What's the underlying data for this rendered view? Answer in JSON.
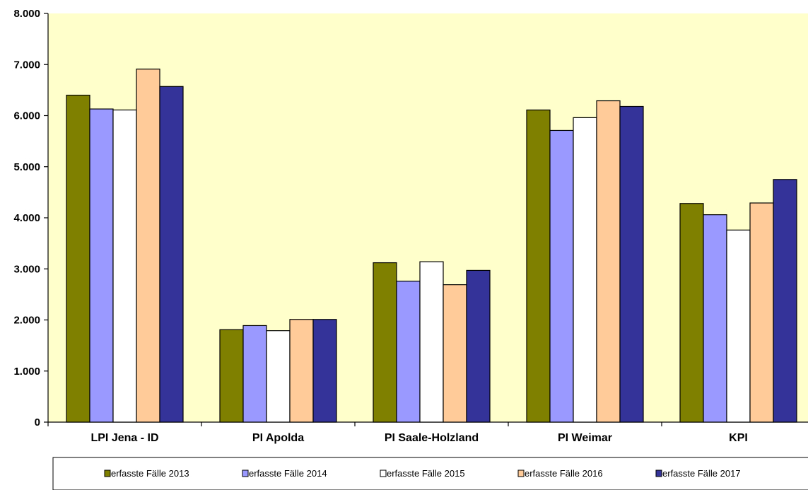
{
  "chart_data": {
    "type": "bar",
    "title": "",
    "xlabel": "",
    "ylabel": "",
    "ylim": [
      0,
      8000
    ],
    "y_ticks": [
      0,
      1000,
      2000,
      3000,
      4000,
      5000,
      6000,
      7000,
      8000
    ],
    "y_tick_labels": [
      "0",
      "1.000",
      "2.000",
      "3.000",
      "4.000",
      "5.000",
      "6.000",
      "7.000",
      "8.000"
    ],
    "grid": false,
    "legend_position": "bottom",
    "plot_background": "#FFFFCC",
    "categories": [
      "LPI Jena - ID",
      "PI Apolda",
      "PI Saale-Holzland",
      "PI Weimar",
      "KPI"
    ],
    "series": [
      {
        "name": "erfasste Fälle 2013",
        "color": "#808000",
        "values": [
          6400,
          1810,
          3120,
          6110,
          4280
        ]
      },
      {
        "name": "erfasste Fälle 2014",
        "color": "#9999FF",
        "values": [
          6130,
          1890,
          2760,
          5710,
          4060
        ]
      },
      {
        "name": "erfasste Fälle 2015",
        "color": "#FFFFFF",
        "values": [
          6110,
          1790,
          3140,
          5960,
          3760
        ]
      },
      {
        "name": "erfasste Fälle 2016",
        "color": "#FFCC99",
        "values": [
          6910,
          2010,
          2690,
          6290,
          4290
        ]
      },
      {
        "name": "erfasste Fälle 2017",
        "color": "#333399",
        "values": [
          6570,
          2010,
          2970,
          6180,
          4750
        ]
      }
    ]
  }
}
